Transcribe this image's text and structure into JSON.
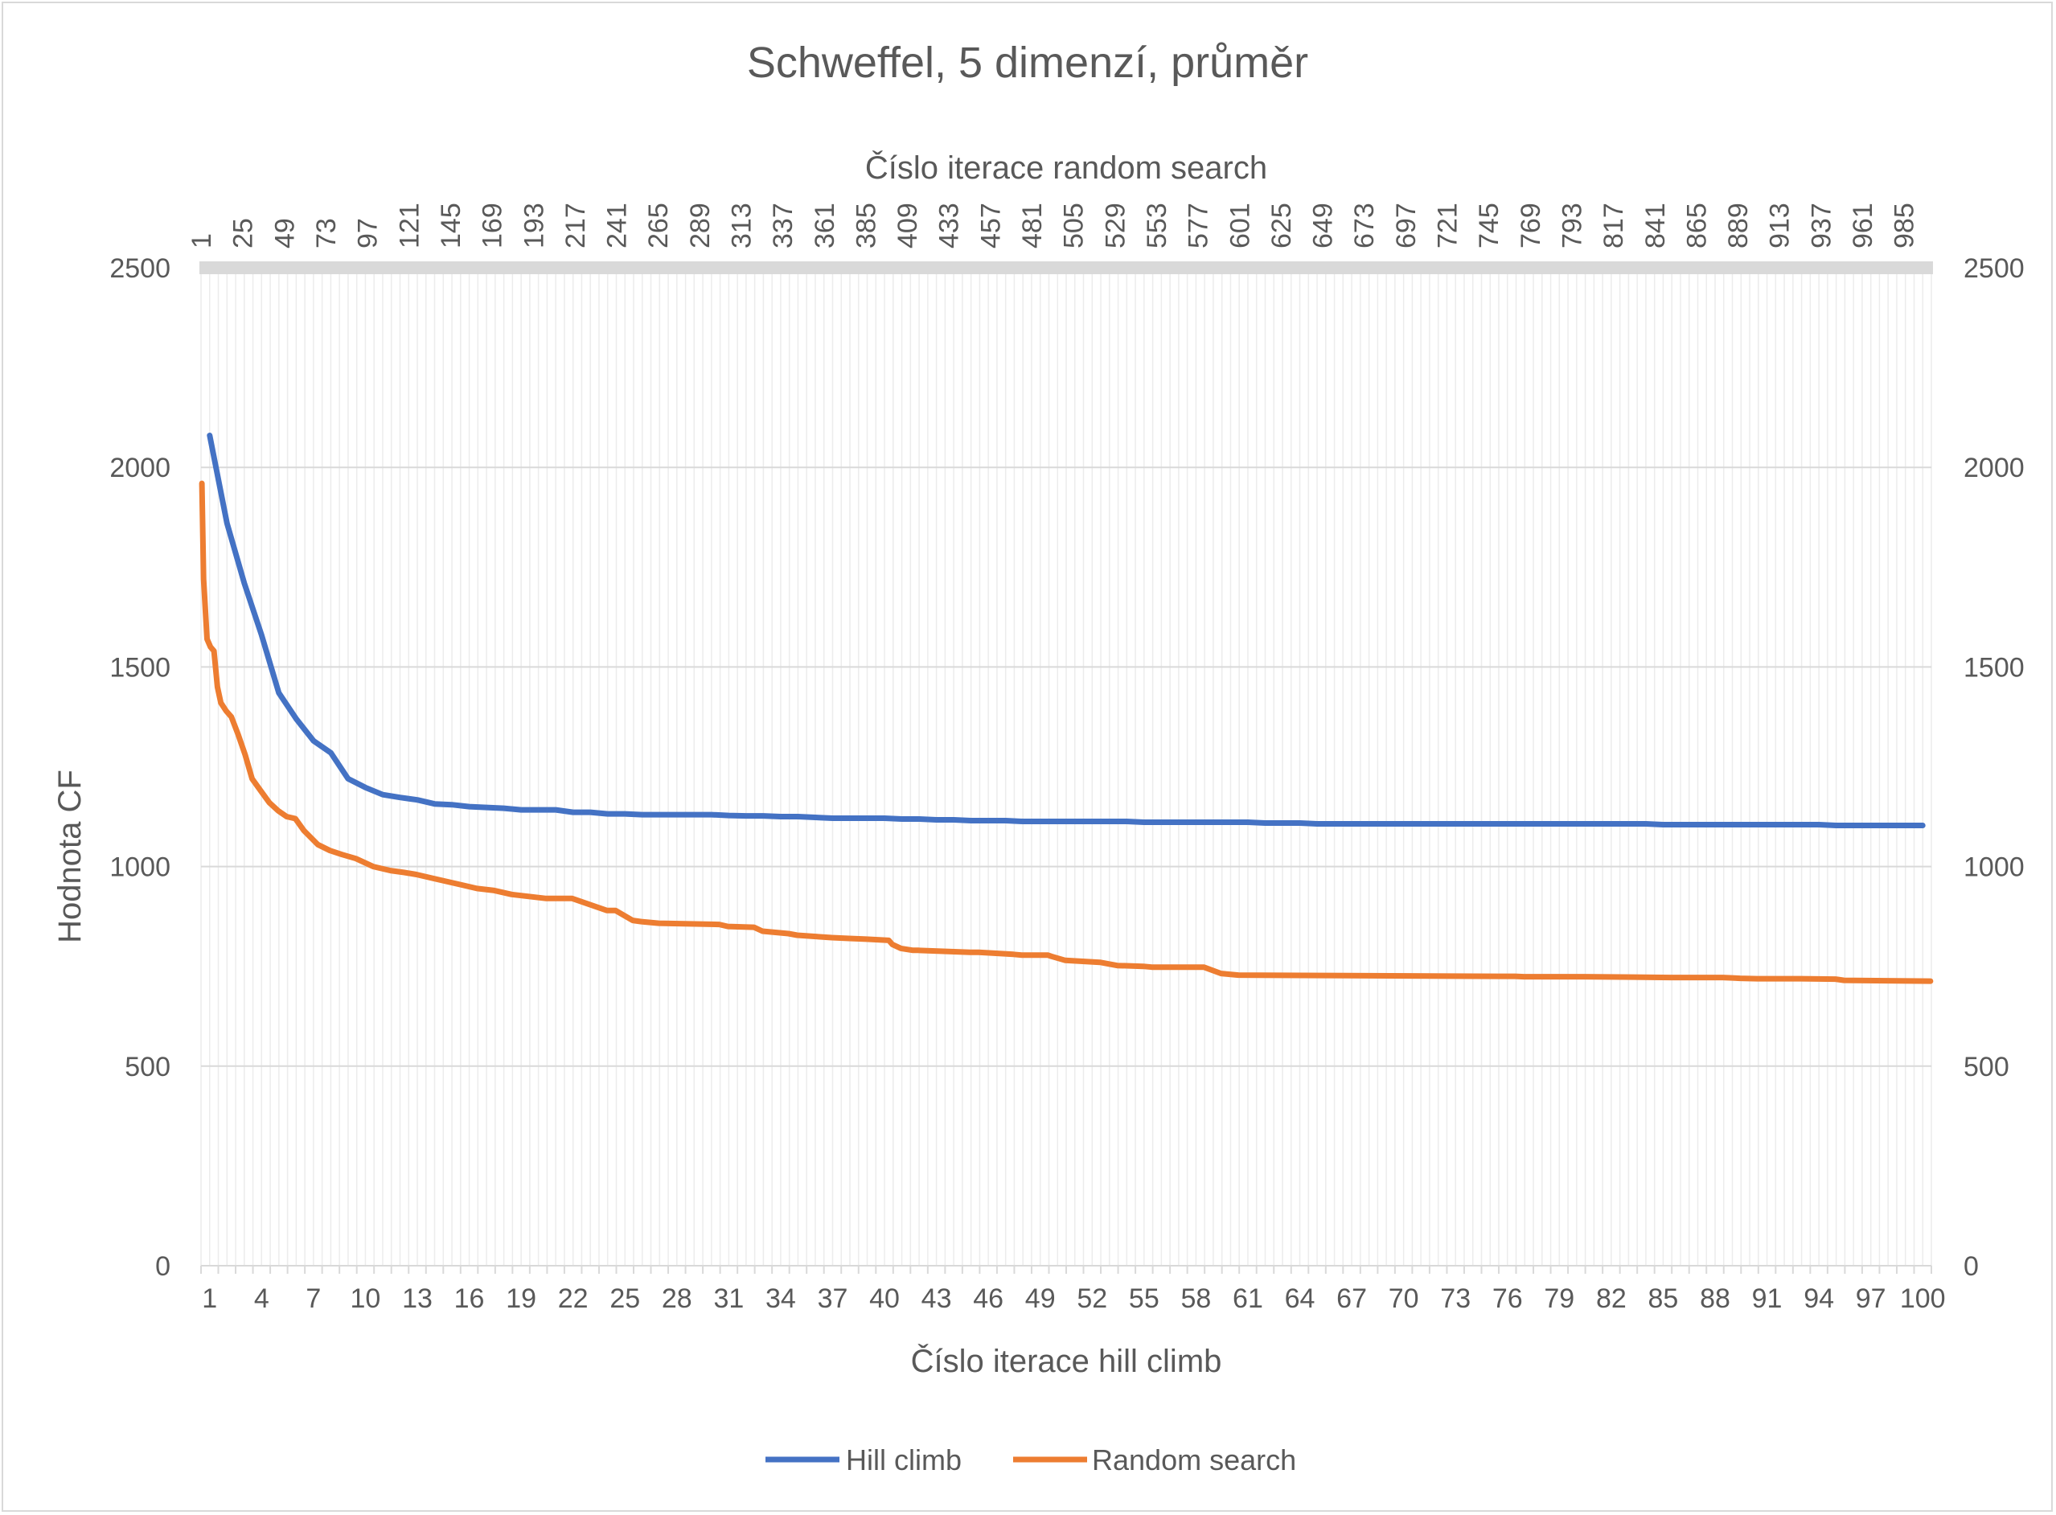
{
  "chart_data": {
    "type": "line",
    "title": "Schweffel, 5 dimenzí, průměr",
    "xlabel": "Číslo iterace hill climb",
    "x2label": "Číslo iterace random search",
    "ylabel": "Hodnota CF",
    "ylim": [
      0,
      2500
    ],
    "y_ticks": [
      "0",
      "500",
      "1000",
      "1500",
      "2000",
      "2500"
    ],
    "y2_ticks": [
      "0",
      "500",
      "1000",
      "1500",
      "2000",
      "2500"
    ],
    "x_range": [
      1,
      100
    ],
    "x_ticks": [
      "1",
      "4",
      "7",
      "10",
      "13",
      "16",
      "19",
      "22",
      "25",
      "28",
      "31",
      "34",
      "37",
      "40",
      "43",
      "46",
      "49",
      "52",
      "55",
      "58",
      "61",
      "64",
      "67",
      "70",
      "73",
      "76",
      "79",
      "82",
      "85",
      "88",
      "91",
      "94",
      "97",
      "100"
    ],
    "x2_range": [
      1,
      1000
    ],
    "x2_ticks": [
      "1",
      "25",
      "49",
      "73",
      "97",
      "121",
      "145",
      "169",
      "193",
      "217",
      "241",
      "265",
      "289",
      "313",
      "337",
      "361",
      "385",
      "409",
      "433",
      "457",
      "481",
      "505",
      "529",
      "553",
      "577",
      "601",
      "625",
      "649",
      "673",
      "697",
      "721",
      "745",
      "769",
      "793",
      "817",
      "841",
      "865",
      "889",
      "913",
      "937",
      "961",
      "985"
    ],
    "grid": true,
    "legend_position": "bottom",
    "colors": {
      "hill": "#4472c4",
      "random": "#ed7d31",
      "grid": "#d9d9d9",
      "text": "#595959"
    },
    "series": [
      {
        "name": "Hill climb",
        "axis": "primary",
        "x": [
          1,
          2,
          3,
          4,
          5,
          6,
          7,
          8,
          9,
          10,
          11,
          12,
          13,
          14,
          15,
          16,
          17,
          18,
          19,
          20,
          21,
          22,
          23,
          24,
          25,
          26,
          27,
          28,
          29,
          30,
          31,
          32,
          33,
          34,
          35,
          36,
          37,
          38,
          39,
          40,
          41,
          42,
          43,
          44,
          45,
          46,
          47,
          48,
          49,
          50,
          51,
          52,
          53,
          54,
          55,
          56,
          57,
          58,
          59,
          60,
          61,
          62,
          63,
          64,
          65,
          66,
          67,
          68,
          69,
          70,
          71,
          72,
          73,
          74,
          75,
          76,
          77,
          78,
          79,
          80,
          81,
          82,
          83,
          84,
          85,
          86,
          87,
          88,
          89,
          90,
          91,
          92,
          93,
          94,
          95,
          96,
          97,
          98,
          99,
          100
        ],
        "values": [
          2080,
          1860,
          1710,
          1580,
          1435,
          1370,
          1315,
          1285,
          1220,
          1198,
          1180,
          1173,
          1167,
          1157,
          1155,
          1150,
          1148,
          1146,
          1142,
          1142,
          1142,
          1136,
          1136,
          1132,
          1132,
          1130,
          1130,
          1130,
          1130,
          1130,
          1128,
          1127,
          1127,
          1125,
          1125,
          1123,
          1121,
          1121,
          1121,
          1121,
          1119,
          1119,
          1117,
          1117,
          1115,
          1115,
          1115,
          1113,
          1113,
          1113,
          1113,
          1113,
          1113,
          1113,
          1111,
          1111,
          1111,
          1111,
          1111,
          1111,
          1111,
          1109,
          1109,
          1109,
          1107,
          1107,
          1107,
          1107,
          1107,
          1107,
          1107,
          1107,
          1107,
          1107,
          1107,
          1107,
          1107,
          1107,
          1107,
          1107,
          1107,
          1107,
          1107,
          1107,
          1105,
          1105,
          1105,
          1105,
          1105,
          1105,
          1105,
          1105,
          1105,
          1105,
          1103,
          1103,
          1103,
          1103,
          1103,
          1103
        ]
      },
      {
        "name": "Random search",
        "axis": "secondary",
        "x": [
          1,
          2,
          4,
          6,
          8,
          10,
          12,
          15,
          18,
          22,
          26,
          30,
          35,
          40,
          45,
          50,
          55,
          60,
          68,
          75,
          82,
          90,
          100,
          110,
          118,
          125,
          135,
          150,
          160,
          170,
          180,
          190,
          200,
          215,
          235,
          240,
          250,
          255,
          265,
          300,
          305,
          320,
          325,
          340,
          345,
          355,
          365,
          375,
          385,
          398,
          400,
          405,
          412,
          415,
          445,
          450,
          470,
          475,
          490,
          492,
          500,
          520,
          530,
          545,
          550,
          580,
          590,
          595,
          600,
          650,
          700,
          750,
          760,
          765,
          800,
          850,
          880,
          890,
          900,
          925,
          945,
          950,
          1000
        ],
        "values": [
          1960,
          1720,
          1570,
          1550,
          1540,
          1450,
          1410,
          1390,
          1375,
          1330,
          1280,
          1220,
          1190,
          1160,
          1140,
          1125,
          1120,
          1090,
          1055,
          1040,
          1030,
          1020,
          1000,
          990,
          985,
          980,
          970,
          955,
          945,
          940,
          930,
          925,
          920,
          920,
          890,
          890,
          865,
          862,
          858,
          855,
          850,
          848,
          838,
          832,
          828,
          825,
          822,
          820,
          818,
          815,
          805,
          795,
          790,
          790,
          785,
          785,
          780,
          778,
          778,
          775,
          765,
          760,
          752,
          750,
          748,
          748,
          732,
          730,
          728,
          727,
          726,
          725,
          725,
          724,
          724,
          722,
          722,
          720,
          719,
          719,
          718,
          715,
          713
        ]
      }
    ]
  }
}
